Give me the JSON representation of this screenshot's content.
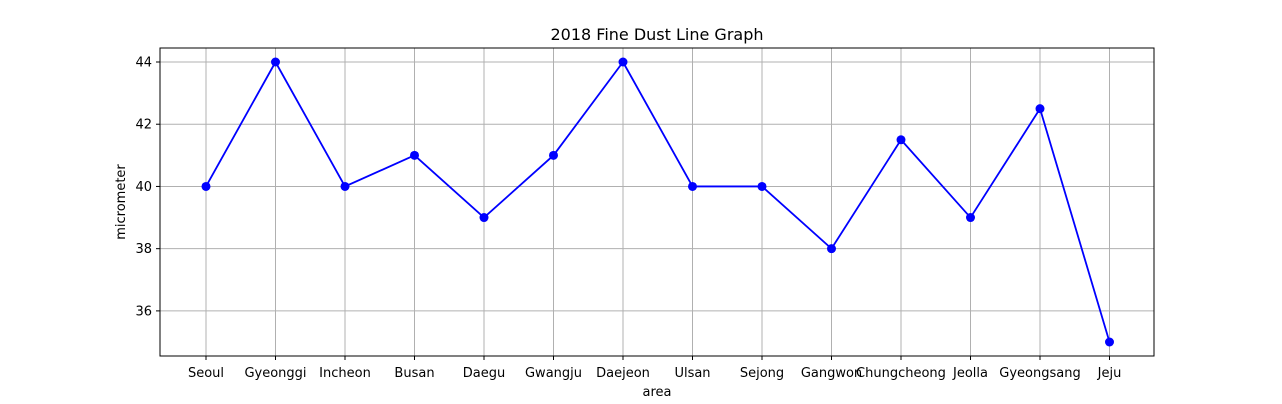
{
  "chart_data": {
    "type": "line",
    "title": "2018 Fine Dust Line Graph",
    "xlabel": "area",
    "ylabel": "micrometer",
    "categories": [
      "Seoul",
      "Gyeonggi",
      "Incheon",
      "Busan",
      "Daegu",
      "Gwangju",
      "Daejeon",
      "Ulsan",
      "Sejong",
      "Gangwon",
      "Chungcheong",
      "Jeolla",
      "Gyeongsang",
      "Jeju"
    ],
    "series": [
      {
        "values": [
          40,
          44,
          40,
          41,
          39,
          41,
          44,
          40,
          40,
          38,
          41.5,
          39,
          42.5,
          35
        ],
        "color": "#0000ff",
        "marker": "circle"
      }
    ],
    "ylim": [
      34.55,
      44.45
    ],
    "yticks": [
      36,
      38,
      40,
      42,
      44
    ],
    "grid": true,
    "grid_color": "#b0b0b0",
    "legend": false
  }
}
